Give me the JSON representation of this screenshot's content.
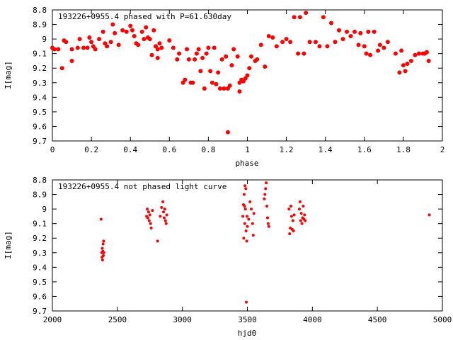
{
  "chart_data": [
    {
      "type": "scatter",
      "title": "193226+0955.4 phased with P=61.630day",
      "xlabel": "phase",
      "ylabel": "I[mag]",
      "xlim": [
        0,
        2
      ],
      "ylim": [
        9.7,
        8.8
      ],
      "y_inverted": true,
      "grid": false,
      "marker": "filled-circle",
      "color": "#ff0000",
      "xticks": [
        0,
        0.2,
        0.4,
        0.6,
        0.8,
        1,
        1.2,
        1.4,
        1.6,
        1.8,
        2
      ],
      "xtick_labels": [
        "0",
        "0.2",
        "0.4",
        "0.6",
        "0.8",
        "1",
        "1.2",
        "1.4",
        "1.6",
        "1.8",
        "2"
      ],
      "yticks": [
        8.8,
        8.9,
        9.0,
        9.1,
        9.2,
        9.3,
        9.4,
        9.5,
        9.6,
        9.7
      ],
      "ytick_labels": [
        "8.8",
        "8.9",
        "9",
        "9.1",
        "9.2",
        "9.3",
        "9.4",
        "9.5",
        "9.6",
        "9.7"
      ],
      "points": [
        [
          0.0,
          9.06
        ],
        [
          0.01,
          9.07
        ],
        [
          0.03,
          9.07
        ],
        [
          0.05,
          9.2
        ],
        [
          0.06,
          9.01
        ],
        [
          0.07,
          9.02
        ],
        [
          0.1,
          9.07
        ],
        [
          0.1,
          9.15
        ],
        [
          0.13,
          9.06
        ],
        [
          0.14,
          9.0
        ],
        [
          0.16,
          9.06
        ],
        [
          0.18,
          9.06
        ],
        [
          0.19,
          8.99
        ],
        [
          0.2,
          9.02
        ],
        [
          0.21,
          9.05
        ],
        [
          0.22,
          9.07
        ],
        [
          0.24,
          9.0
        ],
        [
          0.26,
          8.95
        ],
        [
          0.27,
          9.03
        ],
        [
          0.28,
          9.05
        ],
        [
          0.3,
          9.02
        ],
        [
          0.31,
          8.9
        ],
        [
          0.32,
          8.96
        ],
        [
          0.34,
          9.04
        ],
        [
          0.36,
          8.94
        ],
        [
          0.38,
          8.95
        ],
        [
          0.4,
          8.91
        ],
        [
          0.41,
          8.94
        ],
        [
          0.42,
          8.98
        ],
        [
          0.43,
          9.03
        ],
        [
          0.44,
          9.04
        ],
        [
          0.46,
          8.95
        ],
        [
          0.47,
          9.0
        ],
        [
          0.48,
          8.92
        ],
        [
          0.49,
          8.99
        ],
        [
          0.5,
          9.0
        ],
        [
          0.51,
          9.11
        ],
        [
          0.52,
          8.94
        ],
        [
          0.53,
          9.05
        ],
        [
          0.54,
          9.07
        ],
        [
          0.54,
          9.13
        ],
        [
          0.55,
          9.03
        ],
        [
          0.56,
          9.06
        ],
        [
          0.6,
          9.01
        ],
        [
          0.62,
          9.06
        ],
        [
          0.64,
          9.14
        ],
        [
          0.65,
          9.1
        ],
        [
          0.67,
          9.3
        ],
        [
          0.68,
          9.28
        ],
        [
          0.69,
          9.07
        ],
        [
          0.7,
          9.14
        ],
        [
          0.71,
          9.3
        ],
        [
          0.72,
          9.3
        ],
        [
          0.73,
          9.14
        ],
        [
          0.74,
          9.1
        ],
        [
          0.75,
          9.07
        ],
        [
          0.76,
          9.22
        ],
        [
          0.77,
          9.13
        ],
        [
          0.78,
          9.34
        ],
        [
          0.79,
          9.1
        ],
        [
          0.8,
          9.06
        ],
        [
          0.81,
          9.22
        ],
        [
          0.82,
          9.3
        ],
        [
          0.83,
          9.06
        ],
        [
          0.84,
          9.31
        ],
        [
          0.85,
          9.23
        ],
        [
          0.86,
          9.34
        ],
        [
          0.87,
          9.14
        ],
        [
          0.88,
          9.34
        ],
        [
          0.89,
          9.12
        ],
        [
          0.9,
          9.34
        ],
        [
          0.9,
          9.64
        ],
        [
          0.91,
          9.32
        ],
        [
          0.92,
          9.18
        ],
        [
          0.93,
          9.07
        ],
        [
          0.95,
          9.12
        ],
        [
          0.96,
          9.36
        ],
        [
          0.96,
          9.3
        ],
        [
          0.97,
          9.28
        ],
        [
          0.98,
          9.29
        ],
        [
          0.99,
          9.27
        ],
        [
          1.0,
          9.25
        ],
        [
          1.01,
          9.2
        ],
        [
          1.02,
          9.12
        ],
        [
          1.04,
          9.15
        ],
        [
          1.05,
          9.14
        ],
        [
          1.07,
          9.04
        ],
        [
          1.09,
          9.19
        ],
        [
          1.11,
          8.98
        ],
        [
          1.13,
          8.99
        ],
        [
          1.15,
          9.05
        ],
        [
          1.18,
          9.02
        ],
        [
          1.2,
          9.0
        ],
        [
          1.22,
          9.02
        ],
        [
          1.24,
          8.85
        ],
        [
          1.26,
          9.1
        ],
        [
          1.27,
          8.85
        ],
        [
          1.29,
          9.1
        ],
        [
          1.3,
          8.82
        ],
        [
          1.32,
          9.02
        ],
        [
          1.35,
          9.02
        ],
        [
          1.37,
          9.05
        ],
        [
          1.39,
          8.85
        ],
        [
          1.41,
          9.05
        ],
        [
          1.43,
          8.89
        ],
        [
          1.45,
          9.02
        ],
        [
          1.47,
          8.94
        ],
        [
          1.49,
          9.0
        ],
        [
          1.51,
          8.95
        ],
        [
          1.53,
          8.98
        ],
        [
          1.55,
          8.95
        ],
        [
          1.57,
          9.04
        ],
        [
          1.58,
          8.96
        ],
        [
          1.6,
          9.05
        ],
        [
          1.61,
          9.1
        ],
        [
          1.62,
          8.95
        ],
        [
          1.63,
          9.11
        ],
        [
          1.65,
          8.95
        ],
        [
          1.67,
          9.08
        ],
        [
          1.68,
          9.04
        ],
        [
          1.7,
          9.06
        ],
        [
          1.72,
          9.02
        ],
        [
          1.76,
          9.1
        ],
        [
          1.78,
          9.23
        ],
        [
          1.79,
          9.08
        ],
        [
          1.8,
          9.18
        ],
        [
          1.81,
          9.22
        ],
        [
          1.82,
          9.17
        ],
        [
          1.84,
          9.15
        ],
        [
          1.86,
          9.11
        ],
        [
          1.88,
          9.1
        ],
        [
          1.9,
          9.1
        ],
        [
          1.91,
          9.1
        ],
        [
          1.92,
          9.09
        ],
        [
          1.93,
          9.15
        ]
      ]
    },
    {
      "type": "scatter",
      "title": "193226+0955.4 not phased light curve",
      "xlabel": "hjd0",
      "ylabel": "I[mag]",
      "xlim": [
        2000,
        5000
      ],
      "ylim": [
        9.7,
        8.8
      ],
      "y_inverted": true,
      "grid": false,
      "marker": "small-filled-circle",
      "color": "#ff0000",
      "xticks": [
        2000,
        2500,
        3000,
        3500,
        4000,
        4500,
        5000
      ],
      "xtick_labels": [
        "2000",
        "2500",
        "3000",
        "3500",
        "4000",
        "4500",
        "5000"
      ],
      "yticks": [
        8.8,
        8.9,
        9.0,
        9.1,
        9.2,
        9.3,
        9.4,
        9.5,
        9.6,
        9.7
      ],
      "ytick_labels": [
        "8.8",
        "8.9",
        "9",
        "9.1",
        "9.2",
        "9.3",
        "9.4",
        "9.5",
        "9.6",
        "9.7"
      ],
      "points": [
        [
          2375,
          9.07
        ],
        [
          2380,
          9.3
        ],
        [
          2382,
          9.33
        ],
        [
          2384,
          9.27
        ],
        [
          2386,
          9.35
        ],
        [
          2388,
          9.29
        ],
        [
          2390,
          9.24
        ],
        [
          2392,
          9.32
        ],
        [
          2394,
          9.22
        ],
        [
          2396,
          9.3
        ],
        [
          2725,
          9.05
        ],
        [
          2730,
          9.0
        ],
        [
          2735,
          9.06
        ],
        [
          2740,
          9.02
        ],
        [
          2745,
          9.08
        ],
        [
          2750,
          9.04
        ],
        [
          2755,
          9.1
        ],
        [
          2760,
          9.13
        ],
        [
          2770,
          9.01
        ],
        [
          2810,
          9.22
        ],
        [
          2830,
          9.05
        ],
        [
          2840,
          8.99
        ],
        [
          2850,
          8.95
        ],
        [
          2855,
          9.02
        ],
        [
          2860,
          9.06
        ],
        [
          2865,
          9.0
        ],
        [
          2870,
          9.08
        ],
        [
          2875,
          9.1
        ],
        [
          2880,
          9.04
        ],
        [
          3465,
          9.05
        ],
        [
          3470,
          8.97
        ],
        [
          3472,
          9.2
        ],
        [
          3475,
          8.9
        ],
        [
          3478,
          8.98
        ],
        [
          3480,
          9.1
        ],
        [
          3482,
          8.84
        ],
        [
          3485,
          9.0
        ],
        [
          3488,
          8.86
        ],
        [
          3490,
          9.15
        ],
        [
          3492,
          9.64
        ],
        [
          3495,
          9.22
        ],
        [
          3498,
          9.05
        ],
        [
          3500,
          9.12
        ],
        [
          3510,
          9.07
        ],
        [
          3520,
          8.95
        ],
        [
          3530,
          9.0
        ],
        [
          3540,
          9.1
        ],
        [
          3545,
          9.18
        ],
        [
          3550,
          9.03
        ],
        [
          3630,
          8.93
        ],
        [
          3635,
          8.9
        ],
        [
          3640,
          8.86
        ],
        [
          3645,
          8.82
        ],
        [
          3650,
          8.98
        ],
        [
          3655,
          9.06
        ],
        [
          3660,
          9.1
        ],
        [
          3665,
          9.12
        ],
        [
          3820,
          9.0
        ],
        [
          3825,
          9.17
        ],
        [
          3830,
          9.13
        ],
        [
          3835,
          8.98
        ],
        [
          3840,
          9.05
        ],
        [
          3845,
          9.14
        ],
        [
          3850,
          9.08
        ],
        [
          3855,
          9.15
        ],
        [
          3860,
          9.04
        ],
        [
          3900,
          9.0
        ],
        [
          3905,
          8.95
        ],
        [
          3910,
          9.08
        ],
        [
          3915,
          9.03
        ],
        [
          3920,
          9.1
        ],
        [
          3925,
          9.06
        ],
        [
          3930,
          8.98
        ],
        [
          3935,
          9.07
        ],
        [
          3940,
          9.04
        ],
        [
          3945,
          9.08
        ],
        [
          4900,
          9.04
        ]
      ]
    }
  ]
}
